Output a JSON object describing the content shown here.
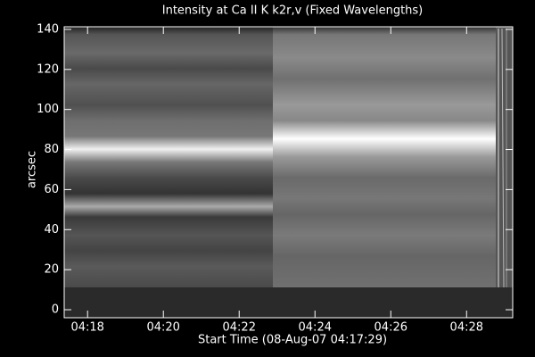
{
  "chart_data": {
    "type": "image",
    "title": "Intensity at Ca II K k2r,v (Fixed Wavelengths)",
    "x_label": "Start Time (08-Aug-07 04:17:29)",
    "y_label": "arcsec",
    "xlim": [
      "04:17:23",
      "04:29:13"
    ],
    "xticks": [
      "04:18",
      "04:20",
      "04:22",
      "04:24",
      "04:26",
      "04:28"
    ],
    "ylim": [
      -4,
      141.3
    ],
    "yticks": [
      0,
      20,
      40,
      60,
      80,
      100,
      120,
      140
    ]
  }
}
